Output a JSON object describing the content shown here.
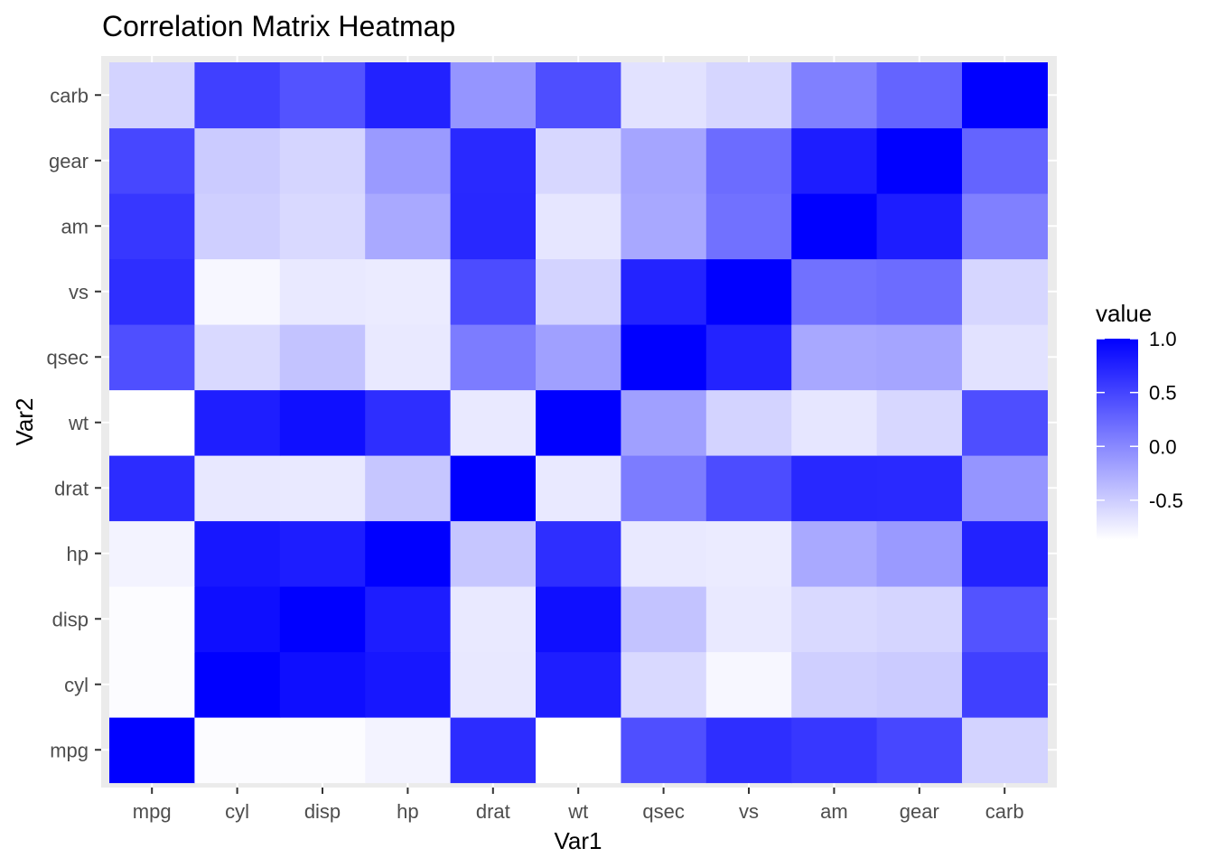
{
  "chart_data": {
    "type": "heatmap",
    "title": "Correlation Matrix Heatmap",
    "xlabel": "Var1",
    "ylabel": "Var2",
    "variables": [
      "mpg",
      "cyl",
      "disp",
      "hp",
      "drat",
      "wt",
      "qsec",
      "vs",
      "am",
      "gear",
      "carb"
    ],
    "matrix": [
      [
        1.0,
        -0.85,
        -0.85,
        -0.78,
        0.68,
        -0.87,
        0.42,
        0.66,
        0.6,
        0.48,
        -0.55
      ],
      [
        -0.85,
        1.0,
        0.9,
        0.83,
        -0.7,
        0.78,
        -0.59,
        -0.81,
        -0.52,
        -0.49,
        0.53
      ],
      [
        -0.85,
        0.9,
        1.0,
        0.79,
        -0.71,
        0.89,
        -0.43,
        -0.71,
        -0.59,
        -0.56,
        0.39
      ],
      [
        -0.78,
        0.83,
        0.79,
        1.0,
        -0.45,
        0.66,
        -0.71,
        -0.72,
        -0.24,
        -0.13,
        0.75
      ],
      [
        0.68,
        -0.7,
        -0.71,
        -0.45,
        1.0,
        -0.71,
        0.09,
        0.44,
        0.71,
        0.7,
        -0.09
      ],
      [
        -0.87,
        0.78,
        0.89,
        0.66,
        -0.71,
        1.0,
        -0.17,
        -0.55,
        -0.69,
        -0.58,
        0.43
      ],
      [
        0.42,
        -0.59,
        -0.43,
        -0.71,
        0.09,
        -0.17,
        1.0,
        0.74,
        -0.23,
        -0.21,
        -0.66
      ],
      [
        0.66,
        -0.81,
        -0.71,
        -0.72,
        0.44,
        -0.55,
        0.74,
        1.0,
        0.17,
        0.21,
        -0.57
      ],
      [
        0.6,
        -0.52,
        -0.59,
        -0.24,
        0.71,
        -0.69,
        -0.23,
        0.17,
        1.0,
        0.79,
        0.06
      ],
      [
        0.48,
        -0.49,
        -0.56,
        -0.13,
        0.7,
        -0.58,
        -0.21,
        0.21,
        0.79,
        1.0,
        0.27
      ],
      [
        -0.55,
        0.53,
        0.39,
        0.75,
        -0.09,
        0.43,
        -0.66,
        -0.57,
        0.06,
        0.27,
        1.0
      ]
    ],
    "color_low": "#ffffff",
    "color_high": "#0000ff",
    "value_range": [
      -0.87,
      1.0
    ],
    "legend": {
      "title": "value",
      "ticks": [
        1.0,
        0.5,
        0.0,
        -0.5
      ],
      "tick_labels": [
        "1.0",
        "0.5",
        "0.0",
        "-0.5"
      ],
      "position": "right"
    },
    "grid": true,
    "panel_background": "#ebebeb"
  }
}
